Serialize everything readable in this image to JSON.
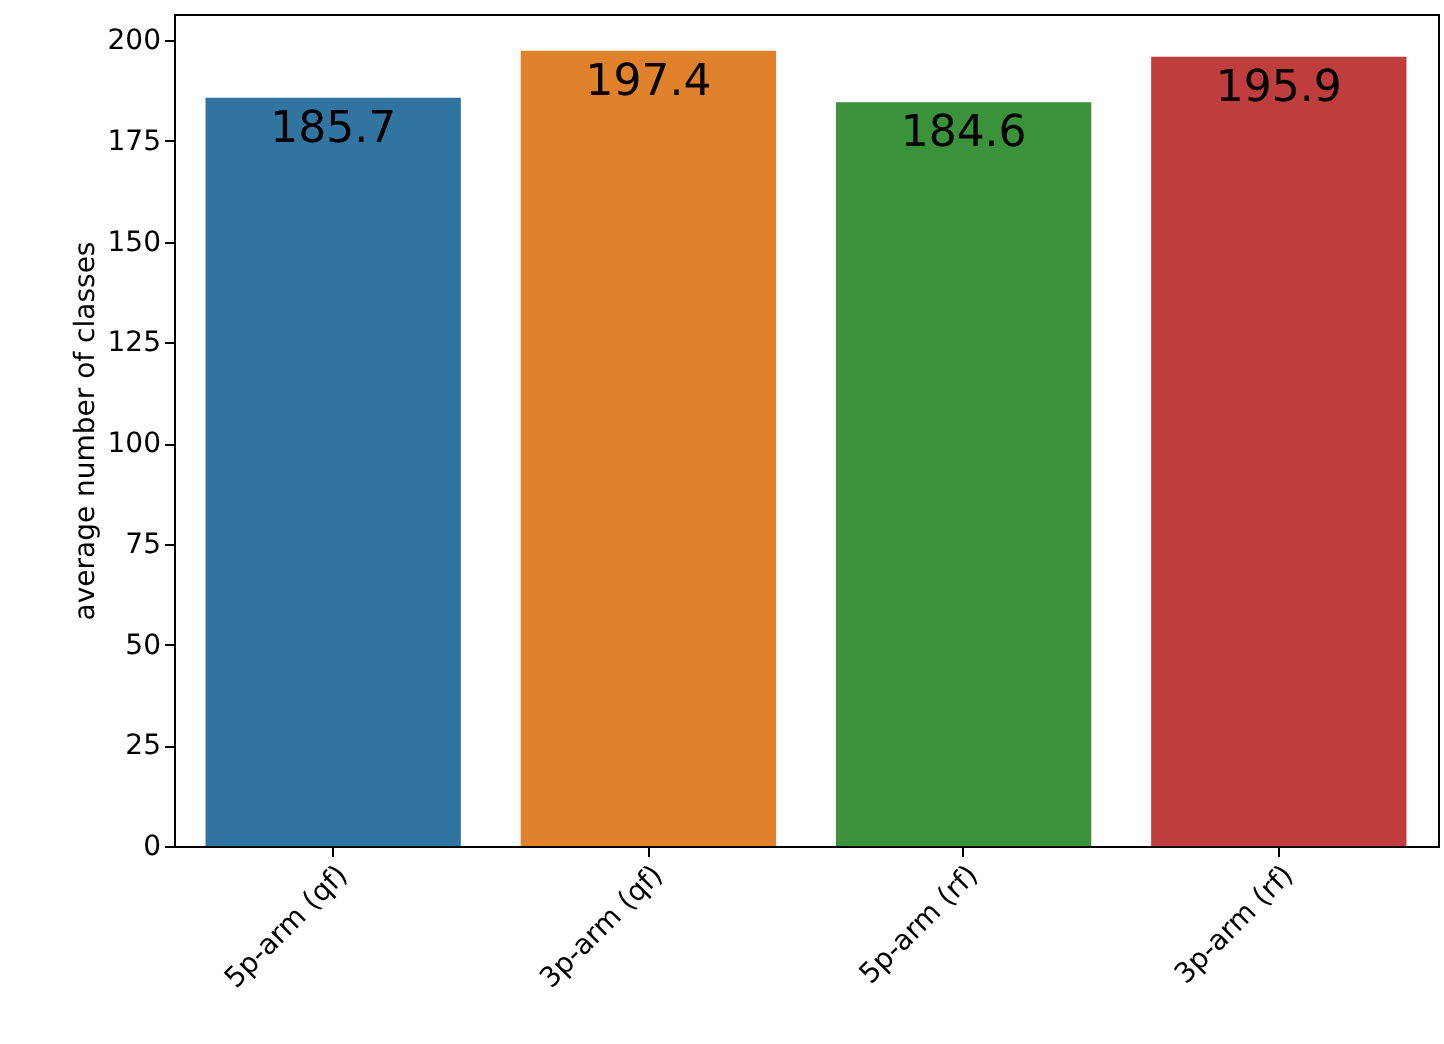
{
  "chart_data": {
    "type": "bar",
    "ylabel": "average number of classes",
    "categories": [
      "5p-arm (qf)",
      "3p-arm (qf)",
      "5p-arm (rf)",
      "3p-arm (rf)"
    ],
    "values": [
      185.7,
      197.4,
      184.6,
      195.9
    ],
    "colors": [
      "#3274a1",
      "#e1812c",
      "#3a923a",
      "#c03d3e"
    ],
    "ylim": [
      0,
      206.5
    ],
    "yticks": [
      0,
      25,
      50,
      75,
      100,
      125,
      150,
      175,
      200
    ],
    "data_labels": true,
    "grid": false
  }
}
